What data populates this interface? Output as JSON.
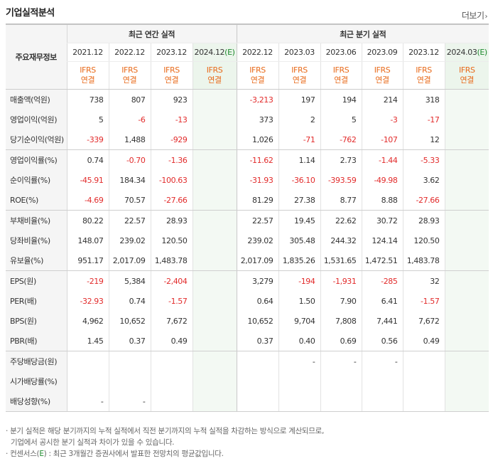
{
  "section_title": "기업실적분석",
  "more_label": "더보기",
  "header": {
    "row_label": "주요재무정보",
    "annual_group": "최근 연간 실적",
    "quarter_group": "최근 분기 실적",
    "ifrs_line1": "IFRS",
    "ifrs_line2": "연결",
    "annual_periods": [
      {
        "label": "2021.12",
        "estimate": false
      },
      {
        "label": "2022.12",
        "estimate": false
      },
      {
        "label": "2023.12",
        "estimate": false
      },
      {
        "label": "2024.12",
        "estimate": true,
        "suffix": "(E)"
      }
    ],
    "quarter_periods": [
      {
        "label": "2022.12",
        "estimate": false
      },
      {
        "label": "2023.03",
        "estimate": false
      },
      {
        "label": "2023.06",
        "estimate": false
      },
      {
        "label": "2023.09",
        "estimate": false
      },
      {
        "label": "2023.12",
        "estimate": false
      },
      {
        "label": "2024.03",
        "estimate": true,
        "suffix": "(E)"
      }
    ]
  },
  "rows": [
    {
      "label": "매출액(억원)",
      "annual": [
        "738",
        "807",
        "923",
        ""
      ],
      "quarter": [
        "-3,213",
        "197",
        "194",
        "214",
        "318",
        ""
      ],
      "group_end": false
    },
    {
      "label": "영업이익(억원)",
      "annual": [
        "5",
        "-6",
        "-13",
        ""
      ],
      "quarter": [
        "373",
        "2",
        "5",
        "-3",
        "-17",
        ""
      ],
      "group_end": false
    },
    {
      "label": "당기순이익(억원)",
      "annual": [
        "-339",
        "1,488",
        "-929",
        ""
      ],
      "quarter": [
        "1,026",
        "-71",
        "-762",
        "-107",
        "12",
        ""
      ],
      "group_end": true
    },
    {
      "label": "영업이익률(%)",
      "annual": [
        "0.74",
        "-0.70",
        "-1.36",
        ""
      ],
      "quarter": [
        "-11.62",
        "1.14",
        "2.73",
        "-1.44",
        "-5.33",
        ""
      ],
      "group_end": false
    },
    {
      "label": "순이익률(%)",
      "annual": [
        "-45.91",
        "184.34",
        "-100.63",
        ""
      ],
      "quarter": [
        "-31.93",
        "-36.10",
        "-393.59",
        "-49.98",
        "3.62",
        ""
      ],
      "group_end": false
    },
    {
      "label": "ROE(%)",
      "annual": [
        "-4.69",
        "70.57",
        "-27.66",
        ""
      ],
      "quarter": [
        "81.29",
        "27.38",
        "8.77",
        "8.88",
        "-27.66",
        ""
      ],
      "group_end": true
    },
    {
      "label": "부채비율(%)",
      "annual": [
        "80.22",
        "22.57",
        "28.93",
        ""
      ],
      "quarter": [
        "22.57",
        "19.45",
        "22.62",
        "30.72",
        "28.93",
        ""
      ],
      "group_end": false
    },
    {
      "label": "당좌비율(%)",
      "annual": [
        "148.07",
        "239.02",
        "120.50",
        ""
      ],
      "quarter": [
        "239.02",
        "305.48",
        "244.32",
        "124.14",
        "120.50",
        ""
      ],
      "group_end": false
    },
    {
      "label": "유보율(%)",
      "annual": [
        "951.17",
        "2,017.09",
        "1,483.78",
        ""
      ],
      "quarter": [
        "2,017.09",
        "1,835.26",
        "1,531.65",
        "1,472.51",
        "1,483.78",
        ""
      ],
      "group_end": true
    },
    {
      "label": "EPS(원)",
      "annual": [
        "-219",
        "5,384",
        "-2,404",
        ""
      ],
      "quarter": [
        "3,279",
        "-194",
        "-1,931",
        "-285",
        "32",
        ""
      ],
      "group_end": false
    },
    {
      "label": "PER(배)",
      "annual": [
        "-32.93",
        "0.74",
        "-1.57",
        ""
      ],
      "quarter": [
        "0.64",
        "1.50",
        "7.90",
        "6.41",
        "-1.57",
        ""
      ],
      "group_end": false
    },
    {
      "label": "BPS(원)",
      "annual": [
        "4,962",
        "10,652",
        "7,672",
        ""
      ],
      "quarter": [
        "10,652",
        "9,704",
        "7,808",
        "7,441",
        "7,672",
        ""
      ],
      "group_end": false
    },
    {
      "label": "PBR(배)",
      "annual": [
        "1.45",
        "0.37",
        "0.49",
        ""
      ],
      "quarter": [
        "0.37",
        "0.40",
        "0.69",
        "0.56",
        "0.49",
        ""
      ],
      "group_end": true
    },
    {
      "label": "주당배당금(원)",
      "annual": [
        "",
        "",
        "",
        ""
      ],
      "quarter": [
        "",
        "-",
        "-",
        "-",
        "",
        ""
      ],
      "group_end": false
    },
    {
      "label": "시가배당률(%)",
      "annual": [
        "",
        "",
        "",
        ""
      ],
      "quarter": [
        "",
        "",
        "",
        "",
        "",
        ""
      ],
      "group_end": false
    },
    {
      "label": "배당성향(%)",
      "annual": [
        "-",
        "-",
        "",
        ""
      ],
      "quarter": [
        "",
        "",
        "",
        "",
        "",
        ""
      ],
      "group_end": true
    }
  ],
  "notes": {
    "line1": "· 분기 실적은 해당 분기까지의 누적 실적에서 직전 분기까지의 누적 실적을 차감하는 방식으로 계산되므로,",
    "line2": "기업에서 공시한 분기 실적과 차이가 있을 수 있습니다.",
    "line3_prefix": "· 컨센서스(",
    "line3_e": "E",
    "line3_suffix": ") : 최근 3개월간 증권사에서 발표한 전망치의 평균값입니다."
  },
  "colors": {
    "negative": "#e22b2b",
    "ifrs": "#e86a1a",
    "estimate": "#1f8a2e",
    "estimate_bg": "#f3f9f3"
  }
}
